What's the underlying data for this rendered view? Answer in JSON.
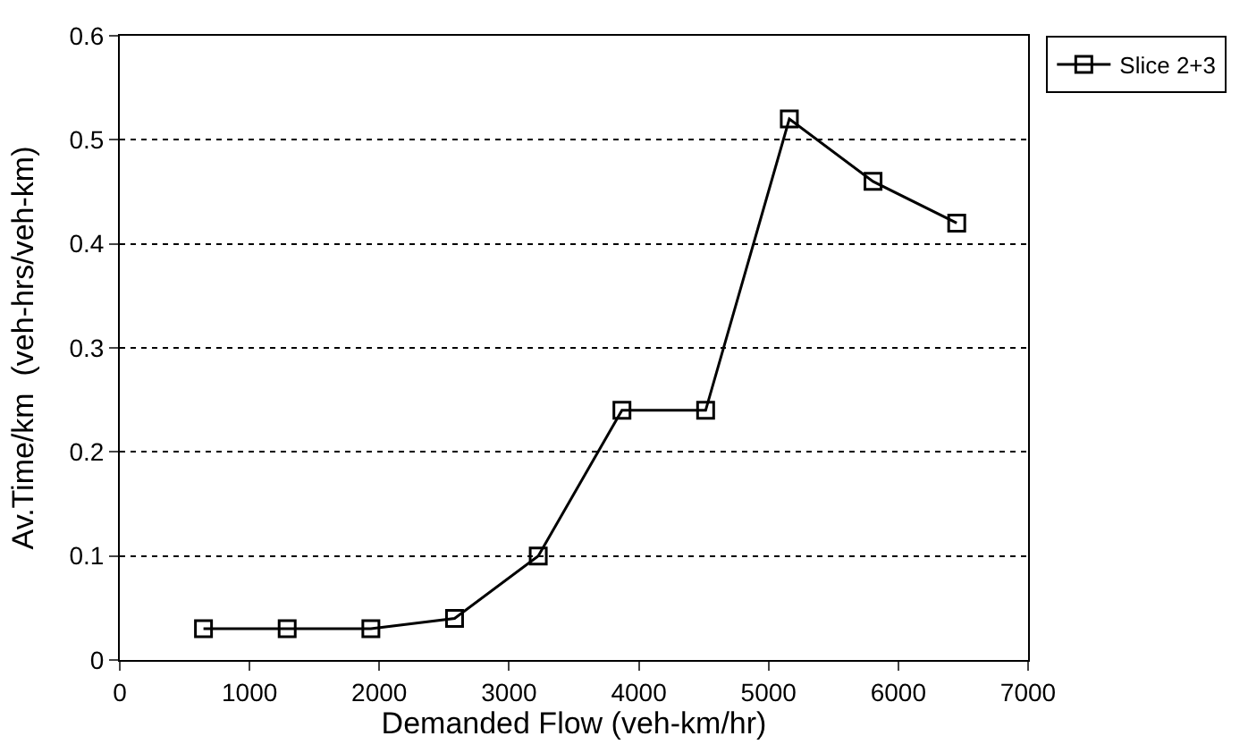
{
  "chart_data": {
    "type": "line",
    "xlabel": "Demanded Flow (veh-km/hr)",
    "ylabel": "Av.Time/km  (veh-hrs/veh-km)",
    "x": [
      645,
      1290,
      1935,
      2580,
      3225,
      3870,
      4515,
      5160,
      5805,
      6450
    ],
    "series": [
      {
        "name": "Slice 2+3",
        "color": "#000000",
        "values": [
          0.03,
          0.03,
          0.03,
          0.04,
          0.1,
          0.24,
          0.24,
          0.52,
          0.46,
          0.42
        ]
      }
    ],
    "xlim": [
      0,
      7000
    ],
    "xticks": [
      0,
      1000,
      2000,
      3000,
      4000,
      5000,
      6000,
      7000
    ],
    "ylim": [
      0,
      0.6
    ],
    "yticks": [
      0,
      0.1,
      0.2,
      0.3,
      0.4,
      0.5,
      0.6
    ],
    "grid": "y",
    "legend": "top right",
    "marker": "square",
    "line_style": "solid"
  }
}
